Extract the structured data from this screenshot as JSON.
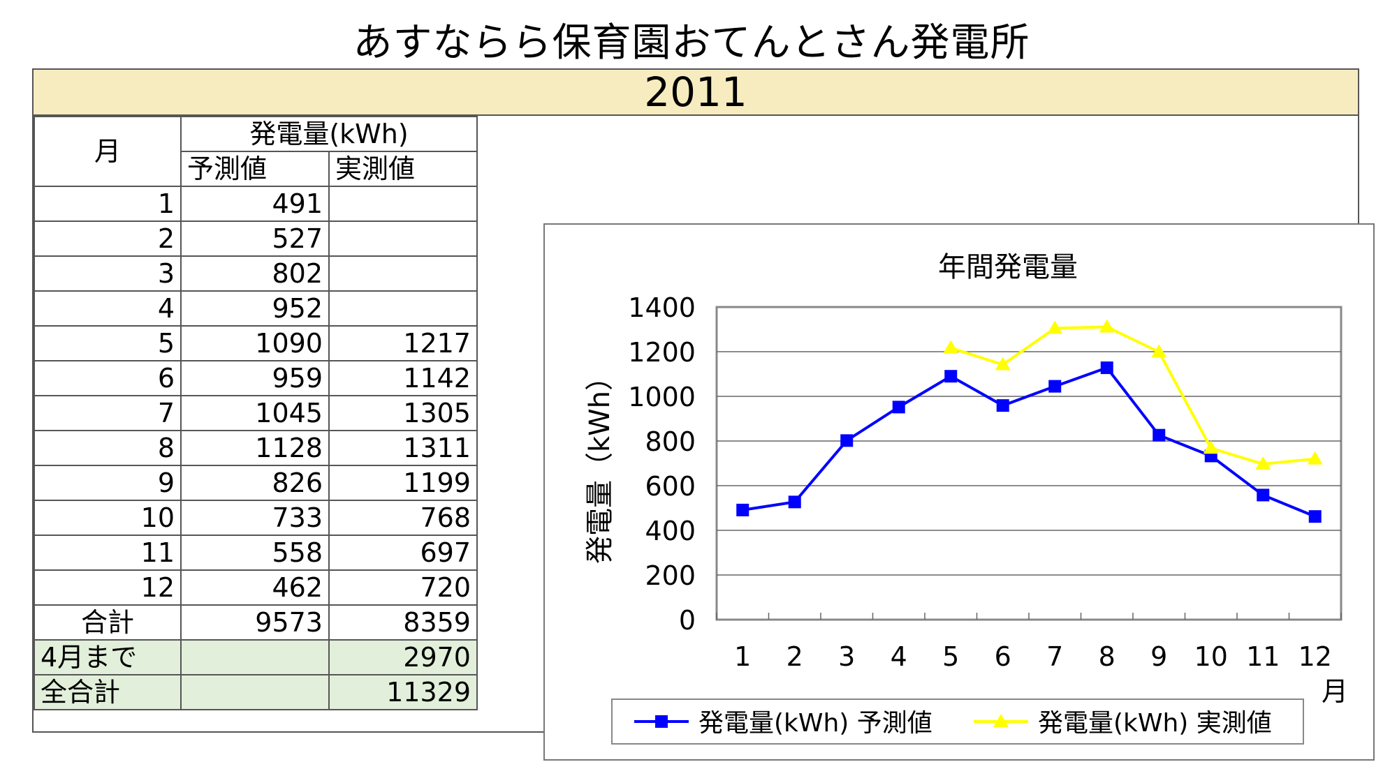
{
  "title": "あすならら保育園おてんとさん発電所",
  "year": "2011",
  "table": {
    "header_month": "月",
    "header_group": "発電量(kWh)",
    "header_pred": "予測値",
    "header_actual": "実測値",
    "rows": [
      {
        "month": "1",
        "pred": "491",
        "actual": ""
      },
      {
        "month": "2",
        "pred": "527",
        "actual": ""
      },
      {
        "month": "3",
        "pred": "802",
        "actual": ""
      },
      {
        "month": "4",
        "pred": "952",
        "actual": ""
      },
      {
        "month": "5",
        "pred": "1090",
        "actual": "1217"
      },
      {
        "month": "6",
        "pred": "959",
        "actual": "1142"
      },
      {
        "month": "7",
        "pred": "1045",
        "actual": "1305"
      },
      {
        "month": "8",
        "pred": "1128",
        "actual": "1311"
      },
      {
        "month": "9",
        "pred": "826",
        "actual": "1199"
      },
      {
        "month": "10",
        "pred": "733",
        "actual": "768"
      },
      {
        "month": "11",
        "pred": "558",
        "actual": "697"
      },
      {
        "month": "12",
        "pred": "462",
        "actual": "720"
      }
    ],
    "total_label": "合計",
    "total_pred": "9573",
    "total_actual": "8359",
    "until_april_label": "4月まで",
    "until_april_value": "2970",
    "grand_total_label": "全合計",
    "grand_total_value": "11329"
  },
  "chart_data": {
    "type": "line",
    "title": "年間発電量",
    "ylabel": "発電量（kWh）",
    "xlabel": "月",
    "categories": [
      "1",
      "2",
      "3",
      "4",
      "5",
      "6",
      "7",
      "8",
      "9",
      "10",
      "11",
      "12"
    ],
    "ylim": [
      0,
      1400
    ],
    "yticks": [
      0,
      200,
      400,
      600,
      800,
      1000,
      1200,
      1400
    ],
    "grid": true,
    "legend": "bottom",
    "series": [
      {
        "name": "発電量(kWh) 予測値",
        "color": "#0000ff",
        "marker": "square",
        "values": [
          491,
          527,
          802,
          952,
          1090,
          959,
          1045,
          1128,
          826,
          733,
          558,
          462
        ]
      },
      {
        "name": "発電量(kWh) 実測値",
        "color": "#ffff00",
        "marker": "triangle",
        "values": [
          null,
          null,
          null,
          null,
          1217,
          1142,
          1305,
          1311,
          1199,
          768,
          697,
          720
        ]
      }
    ]
  }
}
